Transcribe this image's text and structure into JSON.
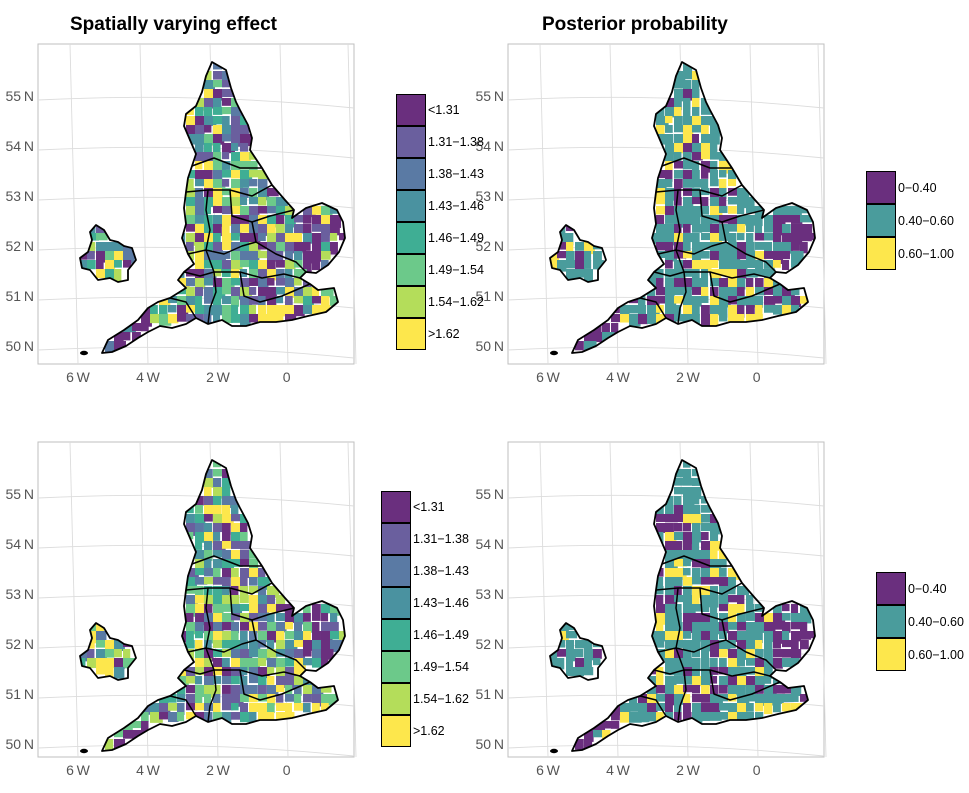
{
  "titles": {
    "left": "Spatially varying effect",
    "right": "Posterior probability"
  },
  "axes": {
    "lat_labels": [
      "55 N",
      "54 N",
      "53 N",
      "52 N",
      "51 N",
      "50 N"
    ],
    "lon_labels": [
      "6 W",
      "4 W",
      "2 W",
      "0 "
    ]
  },
  "legends": {
    "effect": {
      "items": [
        {
          "label": "<1.31",
          "color": "#6a2f7e"
        },
        {
          "label": "1.31−1.38",
          "color": "#6a5f9e"
        },
        {
          "label": "1.38−1.43",
          "color": "#5a7aa4"
        },
        {
          "label": "1.43−1.46",
          "color": "#4a92a0"
        },
        {
          "label": "1.46−1.49",
          "color": "#3fae94"
        },
        {
          "label": "1.49−1.54",
          "color": "#6cc98a"
        },
        {
          "label": "1.54−1.62",
          "color": "#b4dd5a"
        },
        {
          "label": ">1.62",
          "color": "#fde74c"
        }
      ]
    },
    "probability": {
      "items": [
        {
          "label": "0−0.40",
          "color": "#6a2f7e"
        },
        {
          "label": "0.40−0.60",
          "color": "#4a9c9c"
        },
        {
          "label": "0.60−1.00",
          "color": "#fde74c"
        }
      ]
    }
  },
  "colors": {
    "border": "#000000",
    "grid": "#dcdcdc",
    "panel_border": "#bfbfbf"
  }
}
